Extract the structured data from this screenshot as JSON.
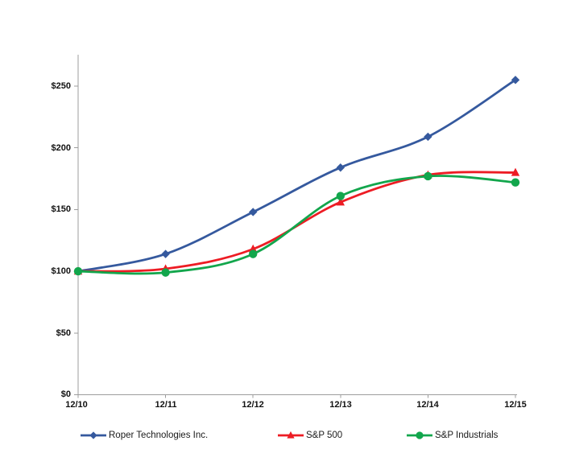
{
  "page": {
    "background": "#FFFFFF"
  },
  "chart_data": {
    "type": "line",
    "title": "",
    "xlabel": "",
    "ylabel": "",
    "categories": [
      "12/10",
      "12/11",
      "12/12",
      "12/13",
      "12/14",
      "12/15"
    ],
    "xtick_labels": [
      "12/10",
      "12/11",
      "12/12",
      "12/13",
      "12/14",
      "12/15"
    ],
    "ytick_labels": [
      "$0",
      "$50",
      "$100",
      "$150",
      "$200",
      "$250"
    ],
    "ytick_values": [
      0,
      50,
      100,
      150,
      200,
      250
    ],
    "ylim": [
      0,
      275
    ],
    "grid": false,
    "smoothed_lines": true,
    "legend_position": "bottom",
    "axis_color": "#9C9C9C",
    "tick_text_color": "#111111",
    "series": [
      {
        "name": "Roper Technologies Inc.",
        "marker": "diamond",
        "color": "#35599E",
        "values": [
          100,
          114,
          148,
          184,
          209,
          255
        ]
      },
      {
        "name": "S&P 500",
        "marker": "triangle",
        "color": "#ED1C24",
        "values": [
          100,
          102,
          118,
          156,
          178,
          180
        ]
      },
      {
        "name": "S&P Industrials",
        "marker": "circle",
        "color": "#12A64C",
        "values": [
          100,
          99,
          114,
          161,
          177,
          172
        ]
      }
    ]
  }
}
